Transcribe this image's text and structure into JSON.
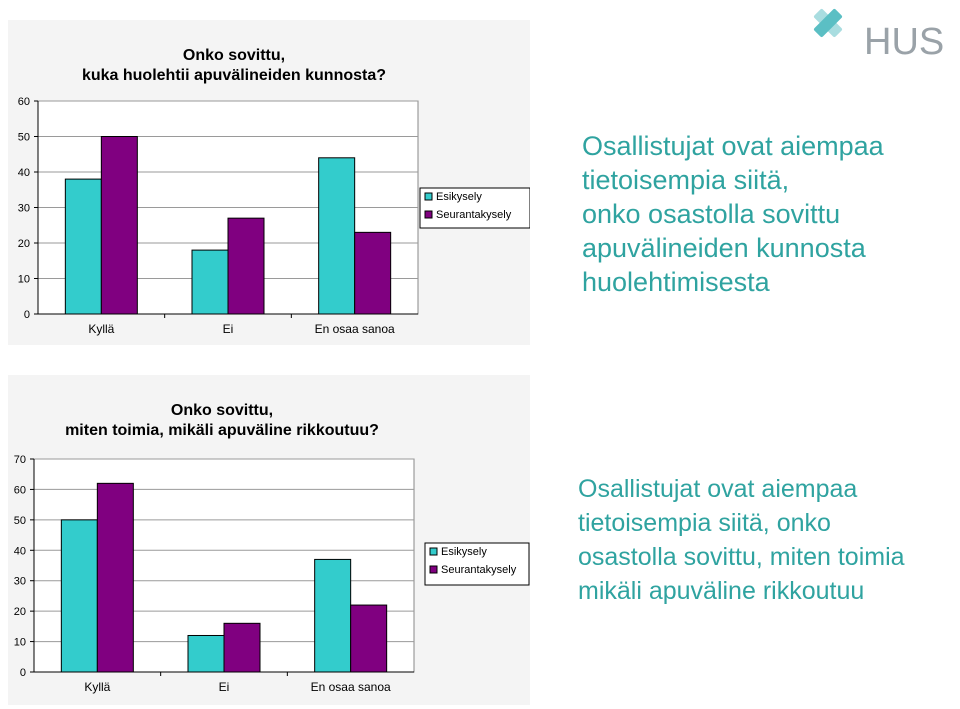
{
  "logo": {
    "text": "HUS"
  },
  "colors": {
    "esikysely": "#33cccc",
    "seuranta": "#800080",
    "text_accent": "#2fa3a0",
    "logo": "#9aa2a8"
  },
  "chart_data": [
    {
      "type": "bar",
      "title_lines": [
        "Onko sovittu,",
        "kuka huolehtii apuvälineiden kunnosta?"
      ],
      "categories": [
        "Kyllä",
        "Ei",
        "En osaa sanoa"
      ],
      "series": [
        {
          "name": "Esikysely",
          "values": [
            38,
            18,
            44
          ]
        },
        {
          "name": "Seurantakysely",
          "values": [
            50,
            27,
            23
          ]
        }
      ],
      "ylim": [
        0,
        60
      ],
      "yticks": [
        0,
        10,
        20,
        30,
        40,
        50,
        60
      ],
      "grid": true,
      "legend": "right"
    },
    {
      "type": "bar",
      "title_lines": [
        "Onko sovittu,",
        "miten toimia, mikäli apuväline rikkoutuu?"
      ],
      "categories": [
        "Kyllä",
        "Ei",
        "En osaa sanoa"
      ],
      "series": [
        {
          "name": "Esikysely",
          "values": [
            50,
            12,
            37
          ]
        },
        {
          "name": "Seurantakysely",
          "values": [
            62,
            16,
            22
          ]
        }
      ],
      "ylim": [
        0,
        70
      ],
      "yticks": [
        0,
        10,
        20,
        30,
        40,
        50,
        60,
        70
      ],
      "grid": true,
      "legend": "right"
    }
  ],
  "texts": [
    {
      "lines": [
        "Osallistujat ovat aiempaa",
        "tietoisempia siitä,",
        "onko osastolla sovittu",
        "apuvälineiden kunnosta",
        "huolehtimisesta"
      ]
    },
    {
      "lines": [
        "Osallistujat ovat aiempaa",
        "tietoisempia siitä, onko",
        "osastolla sovittu, miten toimia",
        "mikäli apuväline rikkoutuu"
      ]
    }
  ]
}
